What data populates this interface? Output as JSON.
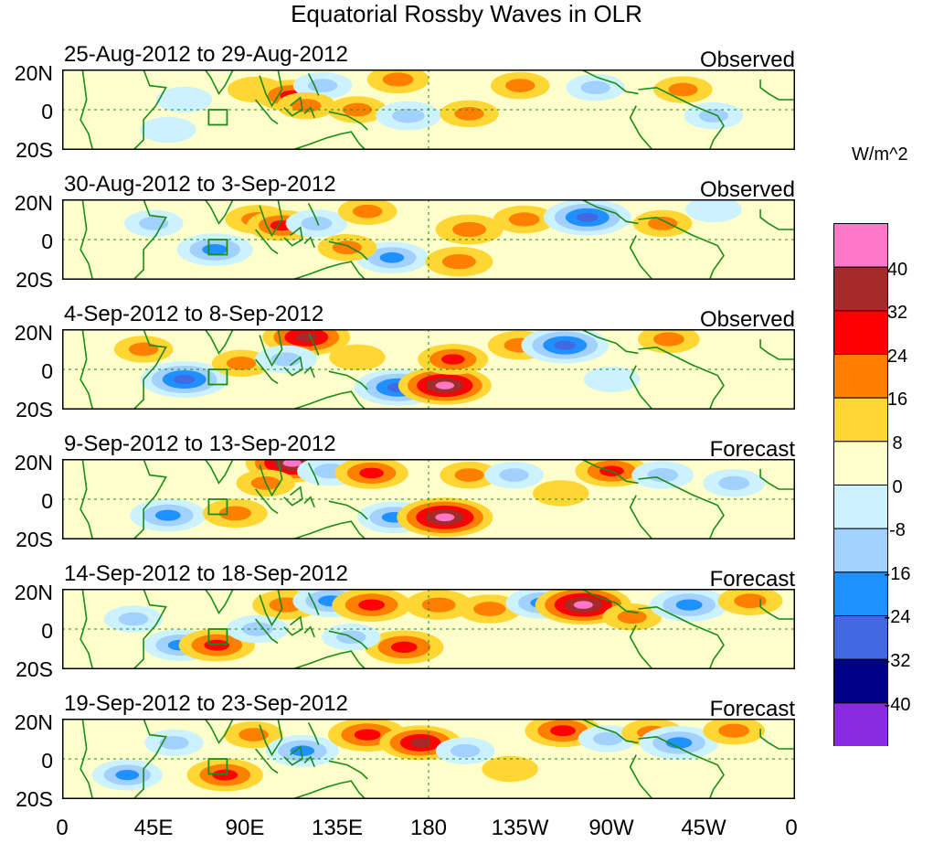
{
  "title": "Equatorial Rossby Waves in OLR",
  "units": "W/m^2",
  "panels": [
    {
      "date_range": "25-Aug-2012 to 29-Aug-2012",
      "status": "Observed"
    },
    {
      "date_range": "30-Aug-2012 to 3-Sep-2012",
      "status": "Observed"
    },
    {
      "date_range": "4-Sep-2012 to 8-Sep-2012",
      "status": "Observed"
    },
    {
      "date_range": "9-Sep-2012 to 13-Sep-2012",
      "status": "Forecast"
    },
    {
      "date_range": "14-Sep-2012 to 18-Sep-2012",
      "status": "Forecast"
    },
    {
      "date_range": "19-Sep-2012 to 23-Sep-2012",
      "status": "Forecast"
    }
  ],
  "y_labels": [
    "20N",
    "0",
    "20S"
  ],
  "x_labels": [
    "0",
    "45E",
    "90E",
    "135E",
    "180",
    "135W",
    "90W",
    "45W",
    "0"
  ],
  "colorbar_labels": [
    "40",
    "32",
    "24",
    "16",
    "8",
    "0",
    "-8",
    "-16",
    "-24",
    "-32",
    "-40"
  ],
  "colors": {
    "levels": [
      "#ff77c8",
      "#a52a2a",
      "#ff0000",
      "#ff7f00",
      "#ffd633",
      "#ffffcc",
      "#ccf2ff",
      "#a3d1ff",
      "#1f90ff",
      "#4169e1",
      "#00008b",
      "#8a2be2"
    ],
    "coast": "#1a8c1a",
    "frame": "#000000"
  },
  "chart_data": {
    "type": "heatmap",
    "title": "Equatorial Rossby Waves in OLR",
    "variable": "OLR anomaly",
    "units": "W/m^2",
    "x_range_lon": [
      0,
      360
    ],
    "y_range_lat": [
      -20,
      20
    ],
    "x_ticks_lon": [
      0,
      45,
      90,
      135,
      180,
      225,
      270,
      315,
      360
    ],
    "y_ticks_lat": [
      20,
      0,
      -20
    ],
    "contour_levels": [
      -40,
      -32,
      -24,
      -16,
      -8,
      0,
      8,
      16,
      24,
      32,
      40
    ],
    "panels": [
      {
        "label": "25-Aug-2012 to 29-Aug-2012",
        "kind": "Observed",
        "anomalies": [
          {
            "lon": 60,
            "lat": 5,
            "value": -8
          },
          {
            "lon": 95,
            "lat": 10,
            "value": 8
          },
          {
            "lon": 113,
            "lat": 7,
            "value": 20
          },
          {
            "lon": 128,
            "lat": 12,
            "value": -10
          },
          {
            "lon": 145,
            "lat": 0,
            "value": 10
          },
          {
            "lon": 165,
            "lat": 15,
            "value": 12
          },
          {
            "lon": 170,
            "lat": -3,
            "value": -14
          },
          {
            "lon": 200,
            "lat": -2,
            "value": 10
          },
          {
            "lon": 225,
            "lat": 12,
            "value": 10
          },
          {
            "lon": 262,
            "lat": 11,
            "value": -10
          },
          {
            "lon": 305,
            "lat": 10,
            "value": 10
          },
          {
            "lon": 320,
            "lat": -3,
            "value": -10
          },
          {
            "lon": 120,
            "lat": 2,
            "value": 10
          },
          {
            "lon": 52,
            "lat": -10,
            "value": -8
          }
        ]
      },
      {
        "label": "30-Aug-2012 to 3-Sep-2012",
        "kind": "Observed",
        "anomalies": [
          {
            "lon": 75,
            "lat": -5,
            "value": -22
          },
          {
            "lon": 96,
            "lat": 10,
            "value": 14
          },
          {
            "lon": 108,
            "lat": 7,
            "value": 18
          },
          {
            "lon": 125,
            "lat": 8,
            "value": -12
          },
          {
            "lon": 150,
            "lat": 14,
            "value": 10
          },
          {
            "lon": 162,
            "lat": -9,
            "value": -20
          },
          {
            "lon": 200,
            "lat": 5,
            "value": 16
          },
          {
            "lon": 195,
            "lat": -11,
            "value": 16
          },
          {
            "lon": 227,
            "lat": 10,
            "value": 12
          },
          {
            "lon": 258,
            "lat": 11,
            "value": -30
          },
          {
            "lon": 295,
            "lat": 8,
            "value": 10
          },
          {
            "lon": 320,
            "lat": 15,
            "value": -8
          },
          {
            "lon": 45,
            "lat": 8,
            "value": -10
          },
          {
            "lon": 140,
            "lat": -4,
            "value": 10
          }
        ]
      },
      {
        "label": "4-Sep-2012 to 8-Sep-2012",
        "kind": "Observed",
        "anomalies": [
          {
            "lon": 60,
            "lat": -5,
            "value": -30
          },
          {
            "lon": 88,
            "lat": 3,
            "value": 10
          },
          {
            "lon": 120,
            "lat": 16,
            "value": 30
          },
          {
            "lon": 165,
            "lat": -9,
            "value": -30
          },
          {
            "lon": 188,
            "lat": -8,
            "value": 34
          },
          {
            "lon": 192,
            "lat": 5,
            "value": 18
          },
          {
            "lon": 225,
            "lat": 12,
            "value": 14
          },
          {
            "lon": 247,
            "lat": 12,
            "value": -30
          },
          {
            "lon": 298,
            "lat": 15,
            "value": 12
          },
          {
            "lon": 270,
            "lat": -5,
            "value": -8
          },
          {
            "lon": 110,
            "lat": 5,
            "value": -12
          },
          {
            "lon": 40,
            "lat": 10,
            "value": 10
          },
          {
            "lon": 145,
            "lat": 6,
            "value": 8
          }
        ]
      },
      {
        "label": "9-Sep-2012 to 13-Sep-2012",
        "kind": "Forecast",
        "anomalies": [
          {
            "lon": 52,
            "lat": -8,
            "value": -22
          },
          {
            "lon": 85,
            "lat": -7,
            "value": 14
          },
          {
            "lon": 113,
            "lat": 18,
            "value": 34
          },
          {
            "lon": 132,
            "lat": 14,
            "value": -16
          },
          {
            "lon": 152,
            "lat": 13,
            "value": 20
          },
          {
            "lon": 163,
            "lat": -9,
            "value": -20
          },
          {
            "lon": 188,
            "lat": -9,
            "value": 36
          },
          {
            "lon": 200,
            "lat": 12,
            "value": 10
          },
          {
            "lon": 222,
            "lat": 12,
            "value": -10
          },
          {
            "lon": 270,
            "lat": 14,
            "value": 20
          },
          {
            "lon": 295,
            "lat": 12,
            "value": -12
          },
          {
            "lon": 330,
            "lat": 8,
            "value": -12
          },
          {
            "lon": 100,
            "lat": 8,
            "value": 10
          },
          {
            "lon": 245,
            "lat": 3,
            "value": 8
          }
        ]
      },
      {
        "label": "14-Sep-2012 to 18-Sep-2012",
        "kind": "Forecast",
        "anomalies": [
          {
            "lon": 35,
            "lat": 5,
            "value": -10
          },
          {
            "lon": 58,
            "lat": -8,
            "value": -20
          },
          {
            "lon": 76,
            "lat": -8,
            "value": 22
          },
          {
            "lon": 110,
            "lat": 12,
            "value": 16
          },
          {
            "lon": 132,
            "lat": 14,
            "value": -22
          },
          {
            "lon": 152,
            "lat": 12,
            "value": 24
          },
          {
            "lon": 168,
            "lat": -9,
            "value": 24
          },
          {
            "lon": 185,
            "lat": 12,
            "value": 16
          },
          {
            "lon": 210,
            "lat": 10,
            "value": 14
          },
          {
            "lon": 236,
            "lat": 13,
            "value": -20
          },
          {
            "lon": 256,
            "lat": 12,
            "value": 36
          },
          {
            "lon": 280,
            "lat": 6,
            "value": 10
          },
          {
            "lon": 308,
            "lat": 12,
            "value": -24
          },
          {
            "lon": 338,
            "lat": 14,
            "value": 14
          },
          {
            "lon": 96,
            "lat": 0,
            "value": -12
          },
          {
            "lon": 142,
            "lat": -4,
            "value": -10
          }
        ]
      },
      {
        "label": "19-Sep-2012 to 23-Sep-2012",
        "kind": "Forecast",
        "anomalies": [
          {
            "lon": 32,
            "lat": -8,
            "value": -18
          },
          {
            "lon": 80,
            "lat": -8,
            "value": 22
          },
          {
            "lon": 94,
            "lat": 12,
            "value": 10
          },
          {
            "lon": 118,
            "lat": 4,
            "value": -20
          },
          {
            "lon": 150,
            "lat": 12,
            "value": 24
          },
          {
            "lon": 176,
            "lat": 8,
            "value": 26
          },
          {
            "lon": 198,
            "lat": 4,
            "value": -10
          },
          {
            "lon": 246,
            "lat": 14,
            "value": 22
          },
          {
            "lon": 268,
            "lat": 10,
            "value": -10
          },
          {
            "lon": 290,
            "lat": 13,
            "value": 12
          },
          {
            "lon": 303,
            "lat": 8,
            "value": -24
          },
          {
            "lon": 330,
            "lat": 14,
            "value": 12
          },
          {
            "lon": 55,
            "lat": 8,
            "value": -10
          },
          {
            "lon": 220,
            "lat": -5,
            "value": 8
          }
        ]
      }
    ]
  }
}
